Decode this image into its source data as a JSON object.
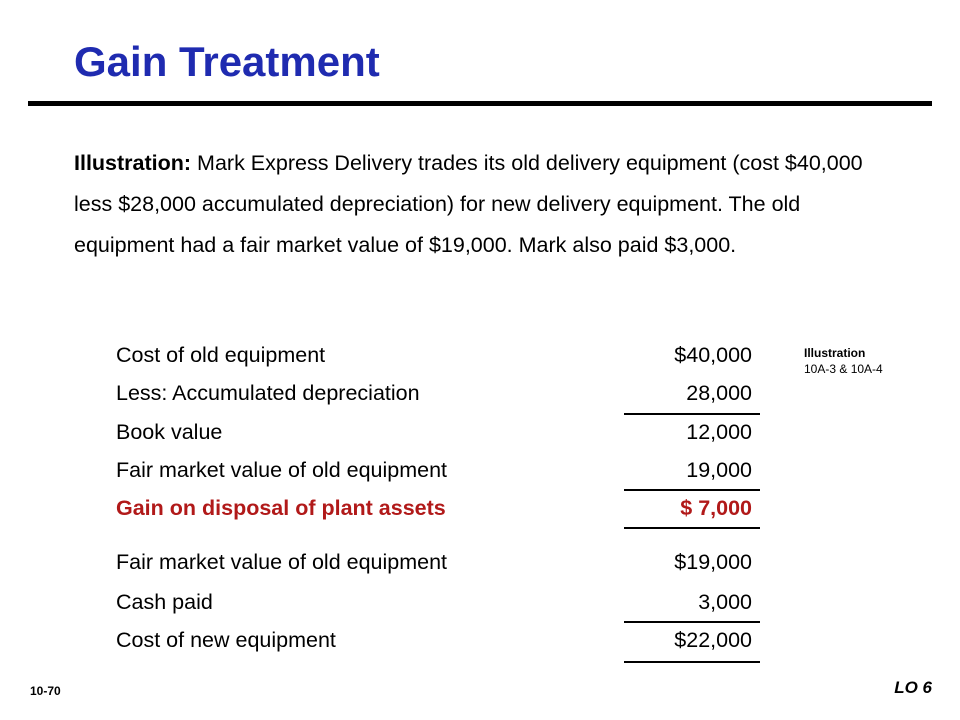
{
  "title": "Gain Treatment",
  "intro": {
    "lead": "Illustration:",
    "text": " Mark Express Delivery trades its old delivery equipment (cost $40,000 less $28,000 accumulated depreciation) for new delivery equipment.  The old equipment had a fair market value of $19,000. Mark also paid $3,000."
  },
  "side_note": {
    "heading": "Illustration",
    "ref": "10A-3 & 10A-4"
  },
  "table1": [
    {
      "label": "Cost of old equipment",
      "amount": "$40,000"
    },
    {
      "label": "Less: Accumulated depreciation",
      "amount": "28,000"
    },
    {
      "label": "Book value",
      "amount": "12,000"
    },
    {
      "label": "Fair market value of old equipment",
      "amount": "19,000"
    },
    {
      "label": "Gain on disposal of plant assets",
      "amount": "$  7,000"
    }
  ],
  "table2": [
    {
      "label": "Fair market value of old equipment",
      "amount": "$19,000"
    },
    {
      "label": "Cash paid",
      "amount": "3,000"
    },
    {
      "label": "Cost of new equipment",
      "amount": "$22,000"
    }
  ],
  "footer": {
    "slide_number": "10-70",
    "learning_objective": "LO 6"
  }
}
